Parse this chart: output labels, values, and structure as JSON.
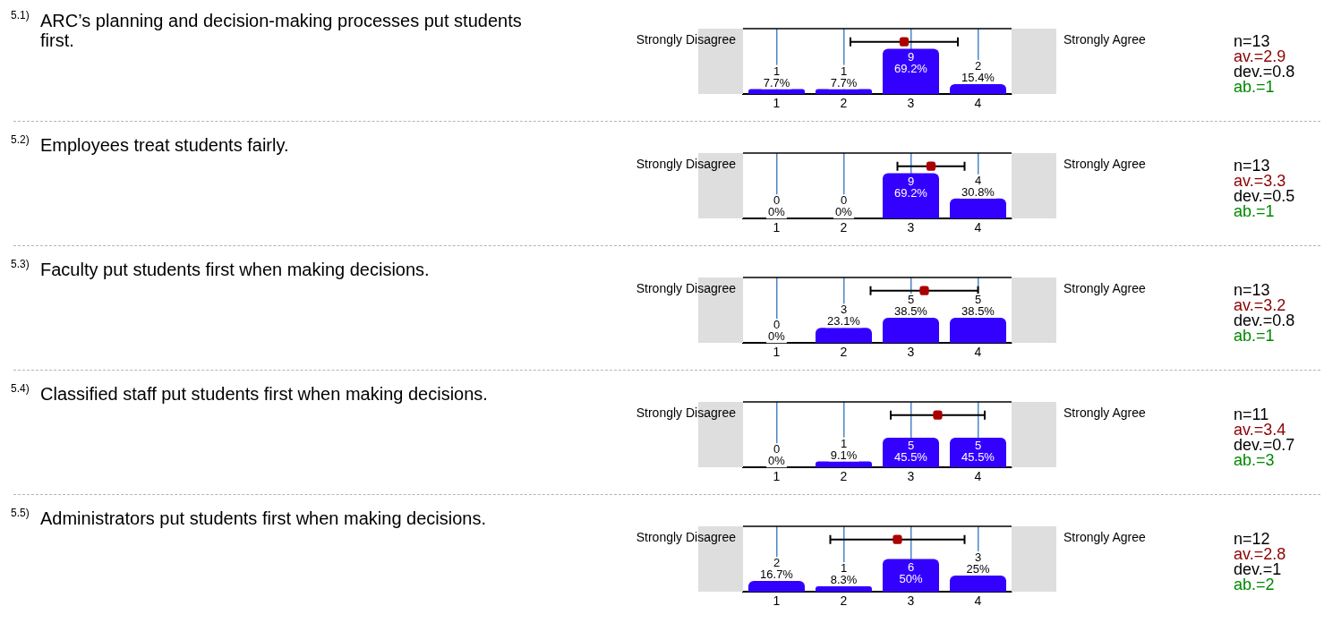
{
  "chart_data": [
    {
      "type": "bar",
      "x": [
        1,
        2,
        3,
        4
      ],
      "xlim": [
        0.5,
        4.5
      ],
      "xticks": [
        1,
        2,
        3,
        4
      ],
      "ylim": [
        0,
        100
      ],
      "grid": "x",
      "tick_labels": "x",
      "series": [
        {
          "color": "#3300ff",
          "values": [
            7.7,
            7.7,
            69.2,
            15.4
          ],
          "value_labels": [
            "1\n7.7%",
            "1\n7.7%",
            "9\n69.2%",
            "2\n15.4%"
          ]
        },
        {
          "type": "scatter",
          "color": "#aa0000",
          "x": [
            2.9
          ],
          "values": [
            80
          ],
          "xerrors": [
            0.8
          ]
        }
      ],
      "annotations": [
        "5.1)",
        "ARC’s planning and decision-making processes put students first.",
        "Strongly Disagree",
        "Strongly Agree",
        "n=13",
        "av.=2.9",
        "dev.=0.8",
        "ab.=1"
      ]
    },
    {
      "type": "bar",
      "x": [
        1,
        2,
        3,
        4
      ],
      "xlim": [
        0.5,
        4.5
      ],
      "xticks": [
        1,
        2,
        3,
        4
      ],
      "ylim": [
        0,
        100
      ],
      "grid": "x",
      "tick_labels": "x",
      "series": [
        {
          "color": "#3300ff",
          "values": [
            0,
            0,
            69.2,
            30.8
          ],
          "value_labels": [
            "0\n0%",
            "0\n0%",
            "9\n69.2%",
            "4\n30.8%"
          ]
        },
        {
          "type": "scatter",
          "color": "#aa0000",
          "x": [
            3.3
          ],
          "values": [
            80
          ],
          "xerrors": [
            0.5
          ]
        }
      ],
      "annotations": [
        "5.2)",
        "Employees treat students fairly.",
        "Strongly Disagree",
        "Strongly Agree",
        "n=13",
        "av.=3.3",
        "dev.=0.5",
        "ab.=1"
      ]
    },
    {
      "type": "bar",
      "x": [
        1,
        2,
        3,
        4
      ],
      "xlim": [
        0.5,
        4.5
      ],
      "xticks": [
        1,
        2,
        3,
        4
      ],
      "ylim": [
        0,
        100
      ],
      "grid": "x",
      "tick_labels": "x",
      "series": [
        {
          "color": "#3300ff",
          "values": [
            0,
            23.1,
            38.5,
            38.5
          ],
          "value_labels": [
            "0\n0%",
            "3\n23.1%",
            "5\n38.5%",
            "5\n38.5%"
          ]
        },
        {
          "type": "scatter",
          "color": "#aa0000",
          "x": [
            3.2
          ],
          "values": [
            80
          ],
          "xerrors": [
            0.8
          ]
        }
      ],
      "annotations": [
        "5.3)",
        "Faculty put students first when making decisions.",
        "Strongly Disagree",
        "Strongly Agree",
        "n=13",
        "av.=3.2",
        "dev.=0.8",
        "ab.=1"
      ]
    },
    {
      "type": "bar",
      "x": [
        1,
        2,
        3,
        4
      ],
      "xlim": [
        0.5,
        4.5
      ],
      "xticks": [
        1,
        2,
        3,
        4
      ],
      "ylim": [
        0,
        100
      ],
      "grid": "x",
      "tick_labels": "x",
      "series": [
        {
          "color": "#3300ff",
          "values": [
            0,
            9.1,
            45.5,
            45.5
          ],
          "value_labels": [
            "0\n0%",
            "1\n9.1%",
            "5\n45.5%",
            "5\n45.5%"
          ]
        },
        {
          "type": "scatter",
          "color": "#aa0000",
          "x": [
            3.4
          ],
          "values": [
            80
          ],
          "xerrors": [
            0.7
          ]
        }
      ],
      "annotations": [
        "5.4)",
        "Classified staff put students first when making decisions.",
        "Strongly Disagree",
        "Strongly Agree",
        "n=11",
        "av.=3.4",
        "dev.=0.7",
        "ab.=3"
      ]
    },
    {
      "type": "bar",
      "x": [
        1,
        2,
        3,
        4
      ],
      "xlim": [
        0.5,
        4.5
      ],
      "xticks": [
        1,
        2,
        3,
        4
      ],
      "ylim": [
        0,
        100
      ],
      "grid": "x",
      "tick_labels": "x",
      "series": [
        {
          "color": "#3300ff",
          "values": [
            16.7,
            8.3,
            50,
            25
          ],
          "value_labels": [
            "2\n16.7%",
            "1\n8.3%",
            "6\n50%",
            "3\n25%"
          ]
        },
        {
          "type": "scatter",
          "color": "#aa0000",
          "x": [
            2.8
          ],
          "values": [
            80
          ],
          "xerrors": [
            1
          ]
        }
      ],
      "annotations": [
        "5.5)",
        "Administrators put students first when making decisions.",
        "Strongly Disagree",
        "Strongly Agree",
        "n=12",
        "av.=2.8",
        "dev.=1",
        "ab.=2"
      ]
    }
  ]
}
